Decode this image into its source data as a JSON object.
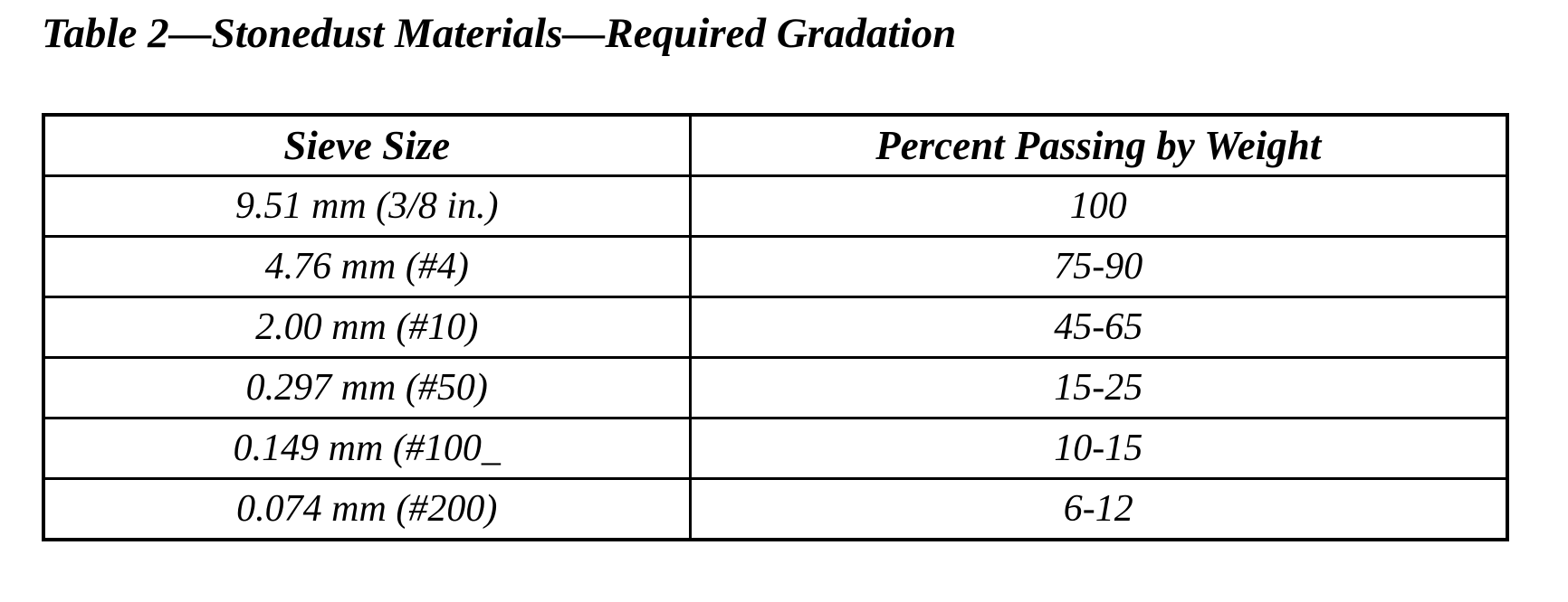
{
  "document": {
    "title": "Table 2—Stonedust Materials—Required Gradation"
  },
  "table": {
    "columns": [
      {
        "label": "Sieve Size"
      },
      {
        "label": "Percent Passing by Weight"
      }
    ],
    "rows": [
      {
        "sieve_size": "9.51 mm (3/8 in.)",
        "percent_passing": "100"
      },
      {
        "sieve_size": "4.76 mm (#4)",
        "percent_passing": "75-90"
      },
      {
        "sieve_size": "2.00 mm (#10)",
        "percent_passing": "45-65"
      },
      {
        "sieve_size": "0.297 mm (#50)",
        "percent_passing": "15-25"
      },
      {
        "sieve_size": "0.149 mm (#100_",
        "percent_passing": "10-15"
      },
      {
        "sieve_size": "0.074 mm (#200)",
        "percent_passing": "6-12"
      }
    ]
  },
  "colors": {
    "text": "#000000",
    "background": "#ffffff",
    "border": "#000000"
  }
}
